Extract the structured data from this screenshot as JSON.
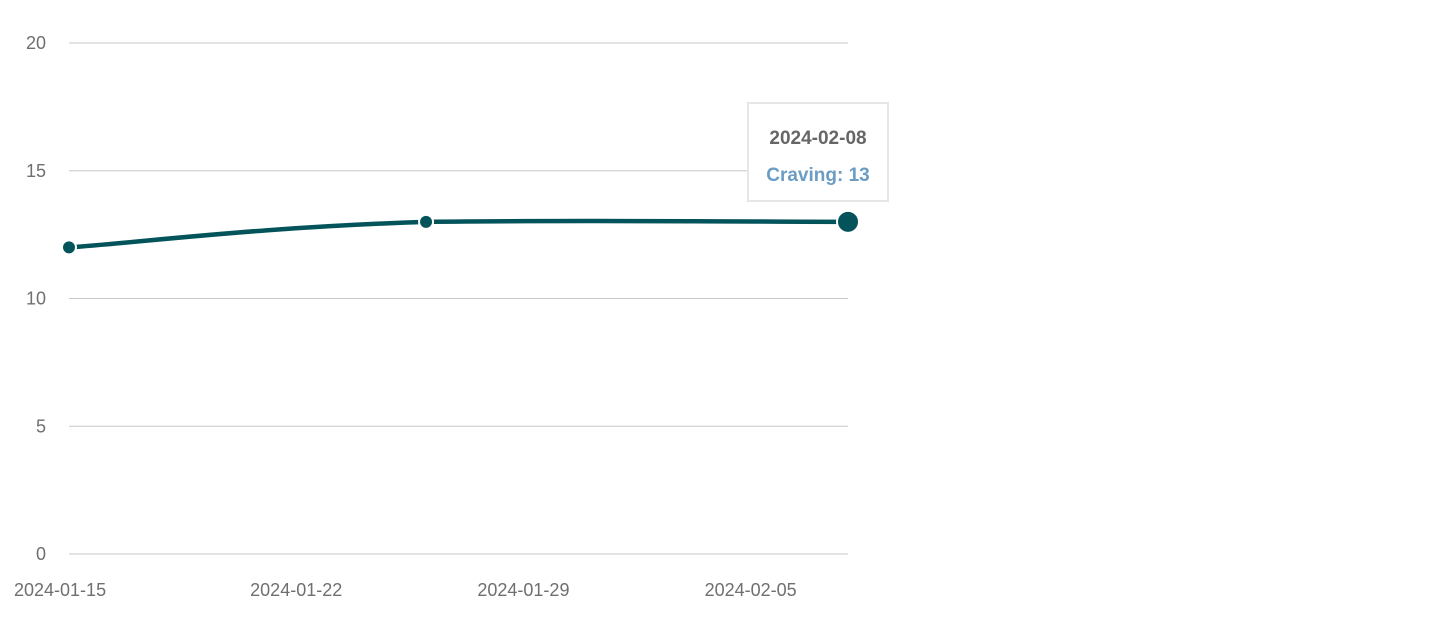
{
  "chart_data": {
    "type": "line",
    "x_axis_type": "date",
    "series": [
      {
        "name": "Craving",
        "color": "#03545a",
        "points": [
          {
            "x": "2024-01-15",
            "y": 12
          },
          {
            "x": "2024-01-26",
            "y": 13
          },
          {
            "x": "2024-02-08",
            "y": 13
          }
        ]
      }
    ],
    "xticks": [
      "2024-01-15",
      "2024-01-22",
      "2024-01-29",
      "2024-02-05"
    ],
    "yticks": [
      0,
      5,
      10,
      15,
      20
    ],
    "xlim": [
      "2024-01-15",
      "2024-02-08"
    ],
    "ylim": [
      0,
      20
    ],
    "grid": "horizontal",
    "legend": "none",
    "title": "",
    "xlabel": "",
    "ylabel": ""
  },
  "tooltip": {
    "date": "2024-02-08",
    "series_label": "Craving",
    "value": 13,
    "text": "Craving: 13",
    "color": "#6b9dc4"
  },
  "colors": {
    "line": "#03545a",
    "grid": "#c8c8c8",
    "tick_text": "#6f6f6f"
  }
}
